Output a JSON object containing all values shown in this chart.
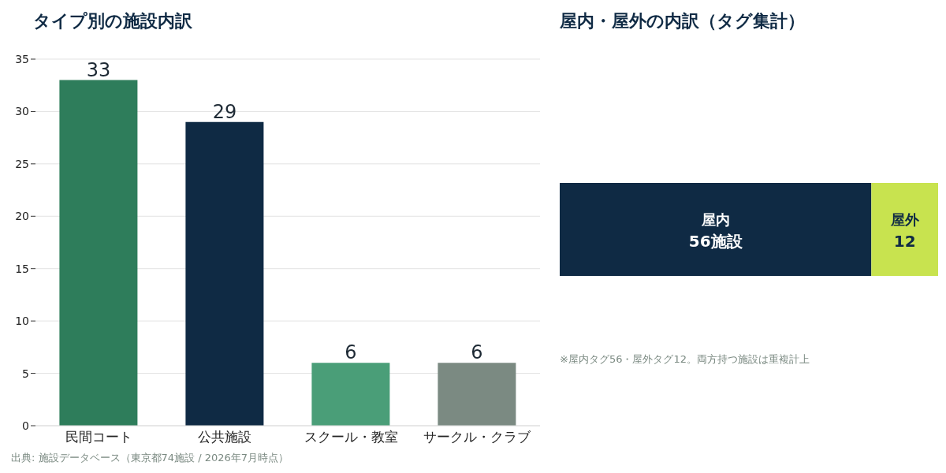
{
  "chart_data": [
    {
      "type": "bar",
      "title": "タイプ別の施設内訳",
      "categories": [
        "民間コート",
        "公共施設",
        "スクール・教室",
        "サークル・クラブ"
      ],
      "values": [
        33,
        29,
        6,
        6
      ],
      "colors": [
        "#2e7d5b",
        "#0f2a44",
        "#4a9e78",
        "#7b8a82"
      ],
      "ylim": [
        0,
        35
      ],
      "yticks": [
        0,
        5,
        10,
        15,
        20,
        25,
        30,
        35
      ],
      "grid": "y",
      "data_labels": true,
      "annotations": [
        "出典: 施設データベース（東京都74施設 / 2026年7月時点）"
      ]
    },
    {
      "type": "bar",
      "title": "屋内・屋外の内訳（タグ集計）",
      "orientation": "horizontal",
      "stacked": true,
      "categories": [
        null
      ],
      "series": [
        {
          "name": "屋内",
          "color": "#0f2a44",
          "values": [
            56
          ],
          "value_labels": [
            "56施設"
          ]
        },
        {
          "name": "屋外",
          "color": "#c8e34f",
          "values": [
            12
          ],
          "value_labels": [
            "12"
          ]
        }
      ],
      "annotations": [
        "※屋内タグ56・屋外タグ12。両方持つ施設は重複計上"
      ]
    }
  ]
}
